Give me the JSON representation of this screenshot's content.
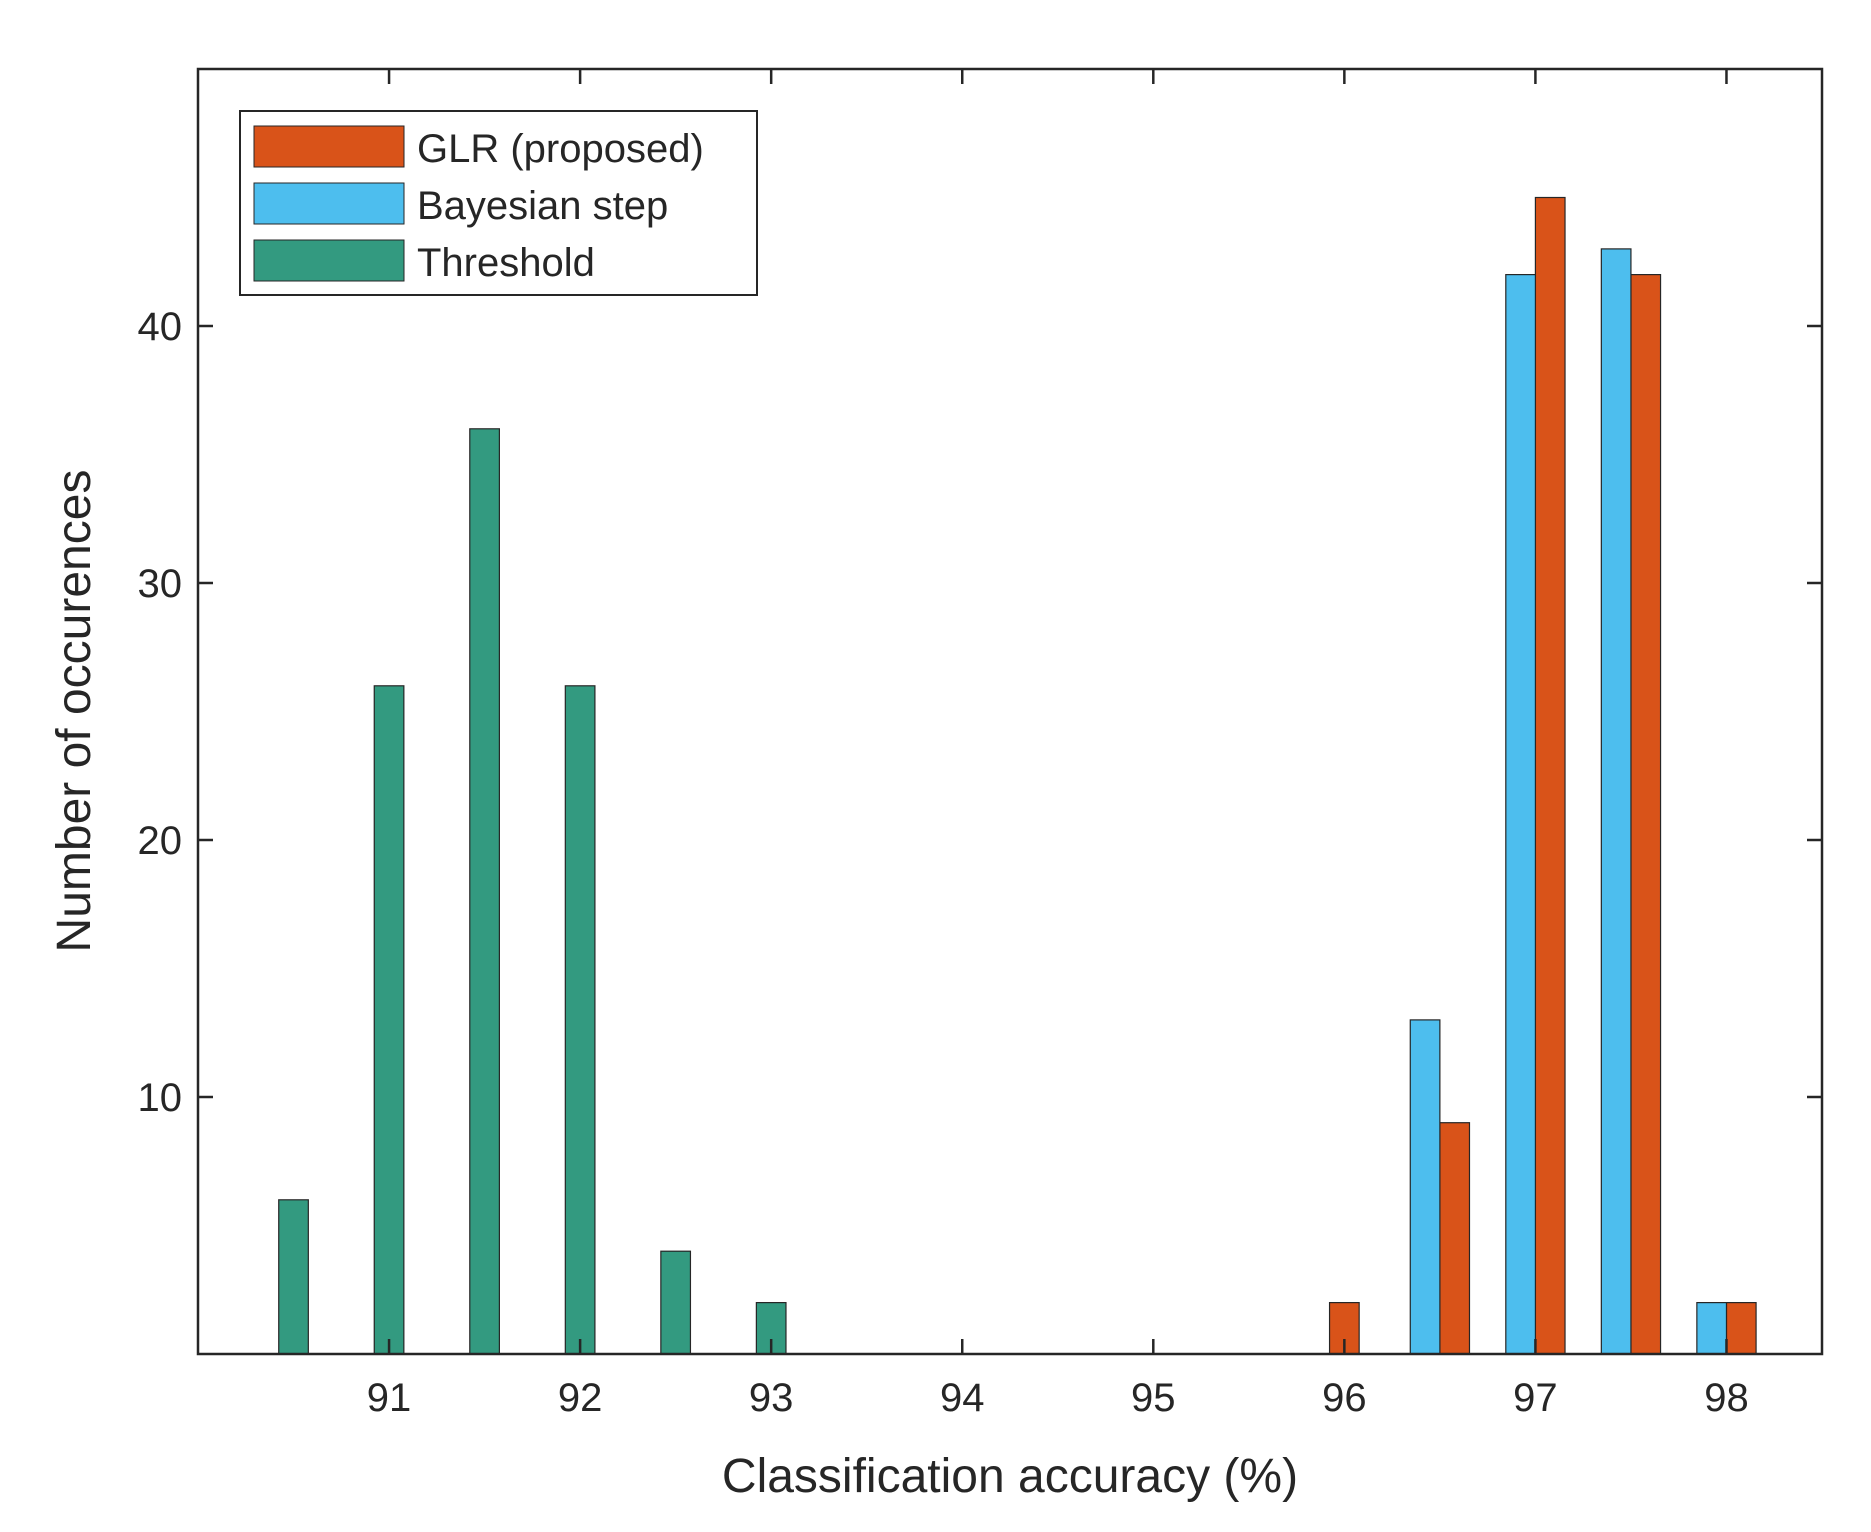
{
  "chart_data": {
    "type": "bar",
    "xlabel": "Classification accuracy (%)",
    "ylabel": "Number of occurences",
    "xlim": [
      90,
      98.5
    ],
    "ylim": [
      0,
      50
    ],
    "xticks": [
      91,
      92,
      93,
      94,
      95,
      96,
      97,
      98
    ],
    "yticks": [
      10,
      20,
      30,
      40
    ],
    "grid": false,
    "legend_position": "top-left",
    "series": [
      {
        "name": "GLR (proposed)",
        "color": "#D95319",
        "points": [
          {
            "x": 96.0,
            "y": 2
          },
          {
            "x": 96.5,
            "y": 9
          },
          {
            "x": 97.0,
            "y": 45
          },
          {
            "x": 97.5,
            "y": 42
          },
          {
            "x": 98.0,
            "y": 2
          }
        ]
      },
      {
        "name": "Bayesian step",
        "color": "#4DBEEE",
        "points": [
          {
            "x": 96.5,
            "y": 13
          },
          {
            "x": 97.0,
            "y": 42
          },
          {
            "x": 97.5,
            "y": 43
          },
          {
            "x": 98.0,
            "y": 2
          }
        ]
      },
      {
        "name": "Threshold",
        "color": "#339A80",
        "points": [
          {
            "x": 90.5,
            "y": 6
          },
          {
            "x": 91.0,
            "y": 26
          },
          {
            "x": 91.5,
            "y": 36
          },
          {
            "x": 92.0,
            "y": 26
          },
          {
            "x": 92.5,
            "y": 4
          },
          {
            "x": 93.0,
            "y": 2
          }
        ]
      }
    ]
  }
}
